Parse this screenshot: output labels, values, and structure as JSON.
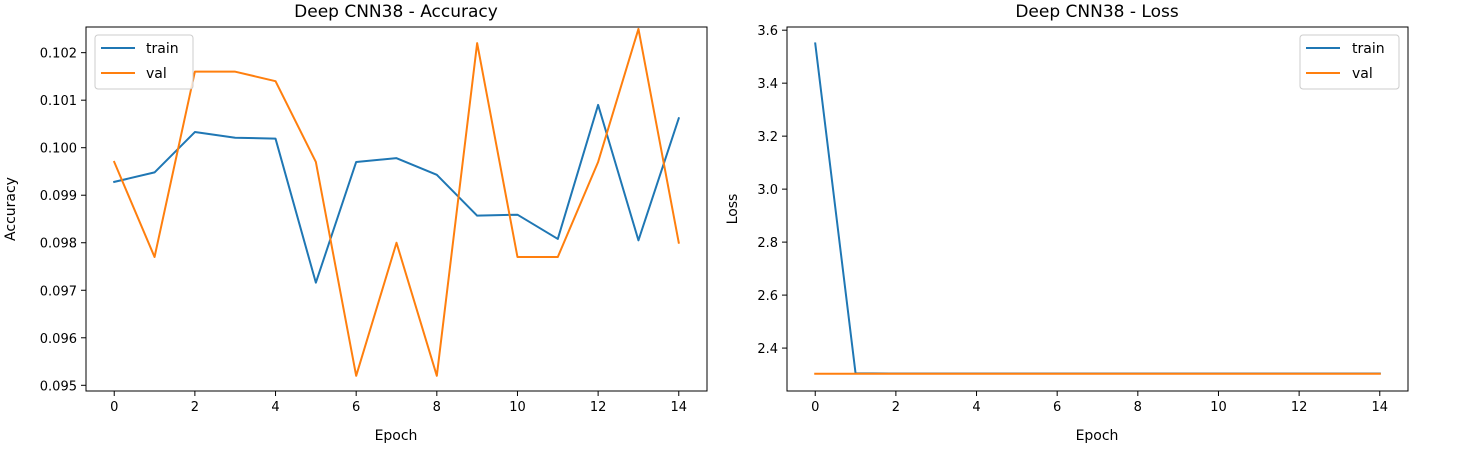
{
  "chart_data": [
    {
      "type": "line",
      "title": "Deep CNN38 - Accuracy",
      "xlabel": "Epoch",
      "ylabel": "Accuracy",
      "xlim": [
        -0.7,
        14.7
      ],
      "ylim": [
        0.09488,
        0.10254
      ],
      "xticks": [
        0,
        2,
        4,
        6,
        8,
        10,
        12,
        14
      ],
      "xtick_labels": [
        "0",
        "2",
        "4",
        "6",
        "8",
        "10",
        "12",
        "14"
      ],
      "yticks": [
        0.095,
        0.096,
        0.097,
        0.098,
        0.099,
        0.1,
        0.101,
        0.102
      ],
      "ytick_labels": [
        "0.095",
        "0.096",
        "0.097",
        "0.098",
        "0.099",
        "0.100",
        "0.101",
        "0.102"
      ],
      "legend": "top-left",
      "grid": false,
      "x": [
        0,
        1,
        2,
        3,
        4,
        5,
        6,
        7,
        8,
        9,
        10,
        11,
        12,
        13,
        14
      ],
      "series": [
        {
          "name": "train",
          "color": "#1f77b4",
          "values": [
            0.09928,
            0.09948,
            0.10033,
            0.10021,
            0.10019,
            0.09716,
            0.0997,
            0.09978,
            0.09943,
            0.09857,
            0.09859,
            0.09808,
            0.1009,
            0.09805,
            0.10062
          ]
        },
        {
          "name": "val",
          "color": "#ff7f0e",
          "values": [
            0.0997,
            0.0977,
            0.1016,
            0.1016,
            0.1014,
            0.0997,
            0.0952,
            0.098,
            0.0952,
            0.1022,
            0.0977,
            0.0977,
            0.0997,
            0.1025,
            0.098
          ]
        }
      ]
    },
    {
      "type": "line",
      "title": "Deep CNN38 - Loss",
      "xlabel": "Epoch",
      "ylabel": "Loss",
      "xlim": [
        -0.7,
        14.7
      ],
      "ylim": [
        2.238,
        3.612
      ],
      "xticks": [
        0,
        2,
        4,
        6,
        8,
        10,
        12,
        14
      ],
      "xtick_labels": [
        "0",
        "2",
        "4",
        "6",
        "8",
        "10",
        "12",
        "14"
      ],
      "yticks": [
        2.4,
        2.6,
        2.8,
        3.0,
        3.2,
        3.4,
        3.6
      ],
      "ytick_labels": [
        "2.4",
        "2.6",
        "2.8",
        "3.0",
        "3.2",
        "3.4",
        "3.6"
      ],
      "legend": "top-right",
      "grid": false,
      "x": [
        0,
        1,
        2,
        3,
        4,
        5,
        6,
        7,
        8,
        9,
        10,
        11,
        12,
        13,
        14
      ],
      "series": [
        {
          "name": "train",
          "color": "#1f77b4",
          "values": [
            3.55,
            2.305,
            2.304,
            2.304,
            2.304,
            2.304,
            2.304,
            2.304,
            2.304,
            2.304,
            2.304,
            2.304,
            2.304,
            2.304,
            2.304
          ]
        },
        {
          "name": "val",
          "color": "#ff7f0e",
          "values": [
            2.303,
            2.303,
            2.303,
            2.303,
            2.303,
            2.303,
            2.303,
            2.303,
            2.303,
            2.303,
            2.303,
            2.303,
            2.303,
            2.303,
            2.303
          ]
        }
      ]
    }
  ]
}
